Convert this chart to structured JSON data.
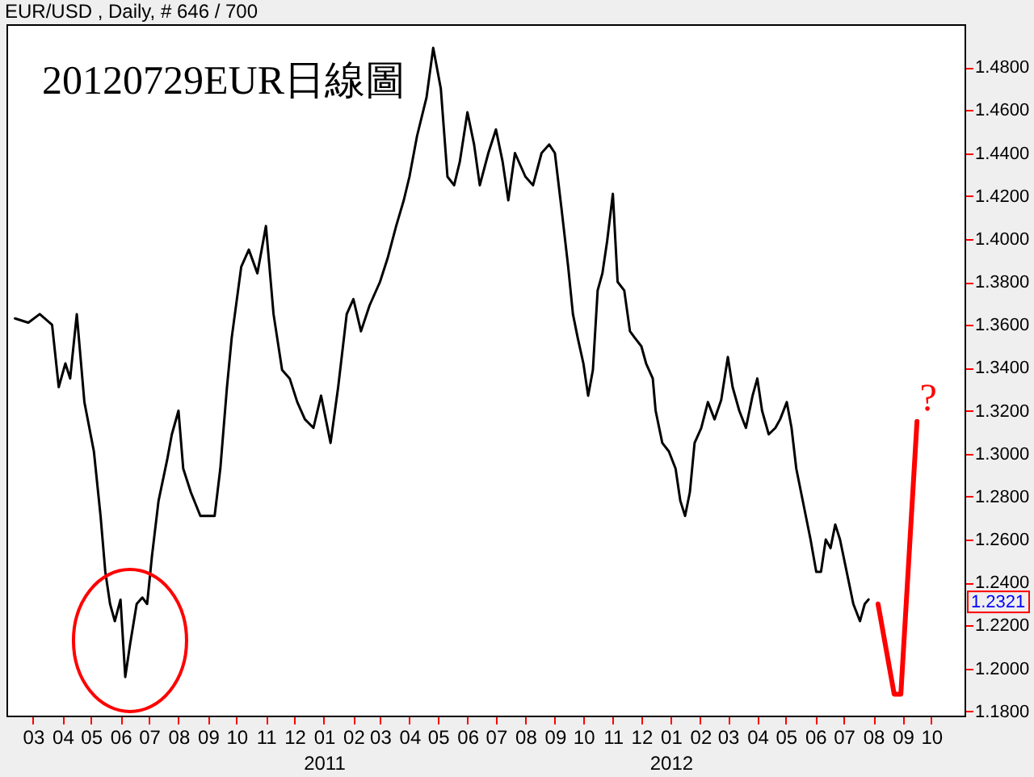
{
  "chart_data": {
    "type": "line",
    "title": "20120729EUR日線圖",
    "subtitle": "EUR/USD , Daily, # 646 / 700",
    "xlim": [
      "2010-02-01",
      "2012-11-05"
    ],
    "xticks": [
      {
        "value": "2010-03-01",
        "label": "03"
      },
      {
        "value": "2010-04-01",
        "label": "04"
      },
      {
        "value": "2010-05-01",
        "label": "05"
      },
      {
        "value": "2010-06-01",
        "label": "06"
      },
      {
        "value": "2010-07-01",
        "label": "07"
      },
      {
        "value": "2010-08-01",
        "label": "08"
      },
      {
        "value": "2010-09-01",
        "label": "09"
      },
      {
        "value": "2010-10-01",
        "label": "10"
      },
      {
        "value": "2010-11-01",
        "label": "11"
      },
      {
        "value": "2010-12-01",
        "label": "12"
      },
      {
        "value": "2011-01-01",
        "label": "01\n2011"
      },
      {
        "value": "2011-02-01",
        "label": "02"
      },
      {
        "value": "2011-03-01",
        "label": "03"
      },
      {
        "value": "2011-04-01",
        "label": "04"
      },
      {
        "value": "2011-05-01",
        "label": "05"
      },
      {
        "value": "2011-06-01",
        "label": "06"
      },
      {
        "value": "2011-07-01",
        "label": "07"
      },
      {
        "value": "2011-08-01",
        "label": "08"
      },
      {
        "value": "2011-09-01",
        "label": "09"
      },
      {
        "value": "2011-10-01",
        "label": "10"
      },
      {
        "value": "2011-11-01",
        "label": "11"
      },
      {
        "value": "2011-12-01",
        "label": "12"
      },
      {
        "value": "2012-01-01",
        "label": "01\n2012"
      },
      {
        "value": "2012-02-01",
        "label": "02"
      },
      {
        "value": "2012-03-01",
        "label": "03"
      },
      {
        "value": "2012-04-01",
        "label": "04"
      },
      {
        "value": "2012-05-01",
        "label": "05"
      },
      {
        "value": "2012-06-01",
        "label": "06"
      },
      {
        "value": "2012-07-01",
        "label": "07"
      },
      {
        "value": "2012-08-01",
        "label": "08"
      },
      {
        "value": "2012-09-01",
        "label": "09"
      },
      {
        "value": "2012-10-01",
        "label": "10"
      }
    ],
    "ylim": [
      1.178,
      1.5
    ],
    "yticks": [
      {
        "value": 1.18,
        "label": "1.1800"
      },
      {
        "value": 1.2,
        "label": "1.2000"
      },
      {
        "value": 1.22,
        "label": "1.2200"
      },
      {
        "value": 1.24,
        "label": "1.2400"
      },
      {
        "value": 1.26,
        "label": "1.2600"
      },
      {
        "value": 1.28,
        "label": "1.2800"
      },
      {
        "value": 1.3,
        "label": "1.3000"
      },
      {
        "value": 1.32,
        "label": "1.3200"
      },
      {
        "value": 1.34,
        "label": "1.3400"
      },
      {
        "value": 1.36,
        "label": "1.3600"
      },
      {
        "value": 1.38,
        "label": "1.3800"
      },
      {
        "value": 1.4,
        "label": "1.4000"
      },
      {
        "value": 1.42,
        "label": "1.4200"
      },
      {
        "value": 1.44,
        "label": "1.4400"
      },
      {
        "value": 1.46,
        "label": "1.4600"
      },
      {
        "value": 1.48,
        "label": "1.4800"
      }
    ],
    "series": [
      {
        "color": "#000000",
        "x": [
          "2010-02-10",
          "2010-02-24",
          "2010-03-08",
          "2010-03-21",
          "2010-03-28",
          "2010-04-04",
          "2010-04-09",
          "2010-04-16",
          "2010-04-24",
          "2010-05-04",
          "2010-05-11",
          "2010-05-16",
          "2010-05-21",
          "2010-05-26",
          "2010-06-01",
          "2010-06-06",
          "2010-06-11",
          "2010-06-18",
          "2010-06-24",
          "2010-06-29",
          "2010-07-04",
          "2010-07-11",
          "2010-07-20",
          "2010-07-25",
          "2010-08-01",
          "2010-08-06",
          "2010-08-14",
          "2010-08-24",
          "2010-09-01",
          "2010-09-08",
          "2010-09-14",
          "2010-09-21",
          "2010-09-26",
          "2010-10-06",
          "2010-10-14",
          "2010-10-23",
          "2010-11-01",
          "2010-11-09",
          "2010-11-18",
          "2010-11-26",
          "2010-12-04",
          "2010-12-12",
          "2010-12-21",
          "2010-12-29",
          "2011-01-08",
          "2011-01-16",
          "2011-01-25",
          "2011-02-01",
          "2011-02-09",
          "2011-02-18",
          "2011-03-01",
          "2011-03-09",
          "2011-03-18",
          "2011-03-26",
          "2011-04-01",
          "2011-04-09",
          "2011-04-19",
          "2011-04-26",
          "2011-05-04",
          "2011-05-11",
          "2011-05-18",
          "2011-05-24",
          "2011-06-01",
          "2011-06-08",
          "2011-06-14",
          "2011-06-23",
          "2011-07-01",
          "2011-07-08",
          "2011-07-14",
          "2011-07-21",
          "2011-08-01",
          "2011-08-09",
          "2011-08-18",
          "2011-08-26",
          "2011-09-01",
          "2011-09-08",
          "2011-09-15",
          "2011-09-20",
          "2011-09-25",
          "2011-10-01",
          "2011-10-06",
          "2011-10-11",
          "2011-10-16",
          "2011-10-21",
          "2011-10-26",
          "2011-11-01",
          "2011-11-06",
          "2011-11-13",
          "2011-11-19",
          "2011-11-24",
          "2011-12-01",
          "2011-12-06",
          "2011-12-13",
          "2011-12-16",
          "2011-12-23",
          "2011-12-30",
          "2012-01-06",
          "2012-01-11",
          "2012-01-16",
          "2012-01-21",
          "2012-01-26",
          "2012-02-02",
          "2012-02-09",
          "2012-02-16",
          "2012-02-23",
          "2012-03-01",
          "2012-03-06",
          "2012-03-13",
          "2012-03-20",
          "2012-03-27",
          "2012-04-01",
          "2012-04-06",
          "2012-04-13",
          "2012-04-20",
          "2012-04-25",
          "2012-05-02",
          "2012-05-07",
          "2012-05-12",
          "2012-05-17",
          "2012-05-22",
          "2012-05-27",
          "2012-06-02",
          "2012-06-07",
          "2012-06-12",
          "2012-06-17",
          "2012-06-22",
          "2012-06-27",
          "2012-07-04",
          "2012-07-11",
          "2012-07-18",
          "2012-07-23",
          "2012-07-27"
        ],
        "values": [
          1.363,
          1.361,
          1.365,
          1.36,
          1.331,
          1.342,
          1.335,
          1.365,
          1.324,
          1.301,
          1.271,
          1.245,
          1.23,
          1.222,
          1.232,
          1.196,
          1.211,
          1.23,
          1.233,
          1.23,
          1.252,
          1.278,
          1.297,
          1.309,
          1.32,
          1.293,
          1.282,
          1.271,
          1.271,
          1.271,
          1.293,
          1.331,
          1.354,
          1.387,
          1.395,
          1.384,
          1.406,
          1.365,
          1.339,
          1.335,
          1.324,
          1.316,
          1.312,
          1.327,
          1.305,
          1.331,
          1.365,
          1.372,
          1.357,
          1.369,
          1.38,
          1.391,
          1.406,
          1.418,
          1.429,
          1.448,
          1.466,
          1.489,
          1.47,
          1.429,
          1.425,
          1.436,
          1.459,
          1.444,
          1.425,
          1.44,
          1.451,
          1.436,
          1.418,
          1.44,
          1.429,
          1.425,
          1.44,
          1.444,
          1.44,
          1.414,
          1.387,
          1.365,
          1.354,
          1.342,
          1.327,
          1.339,
          1.376,
          1.384,
          1.399,
          1.421,
          1.38,
          1.376,
          1.357,
          1.354,
          1.35,
          1.342,
          1.335,
          1.32,
          1.305,
          1.301,
          1.293,
          1.278,
          1.271,
          1.282,
          1.305,
          1.312,
          1.324,
          1.316,
          1.325,
          1.345,
          1.331,
          1.32,
          1.312,
          1.327,
          1.335,
          1.32,
          1.309,
          1.312,
          1.316,
          1.324,
          1.312,
          1.293,
          1.282,
          1.271,
          1.26,
          1.245,
          1.245,
          1.26,
          1.256,
          1.267,
          1.26,
          1.245,
          1.23,
          1.222,
          1.23,
          1.2321
        ]
      },
      {
        "color": "#ff0000",
        "x": [
          "2012-08-06",
          "2012-08-23",
          "2012-08-30",
          "2012-09-16"
        ],
        "values": [
          1.23,
          1.188,
          1.188,
          1.315
        ]
      }
    ],
    "annotations": [
      "?",
      {
        "text": "1.2321",
        "y": 1.2321
      }
    ],
    "marker": "none",
    "line_style": "solid",
    "grid": false
  }
}
